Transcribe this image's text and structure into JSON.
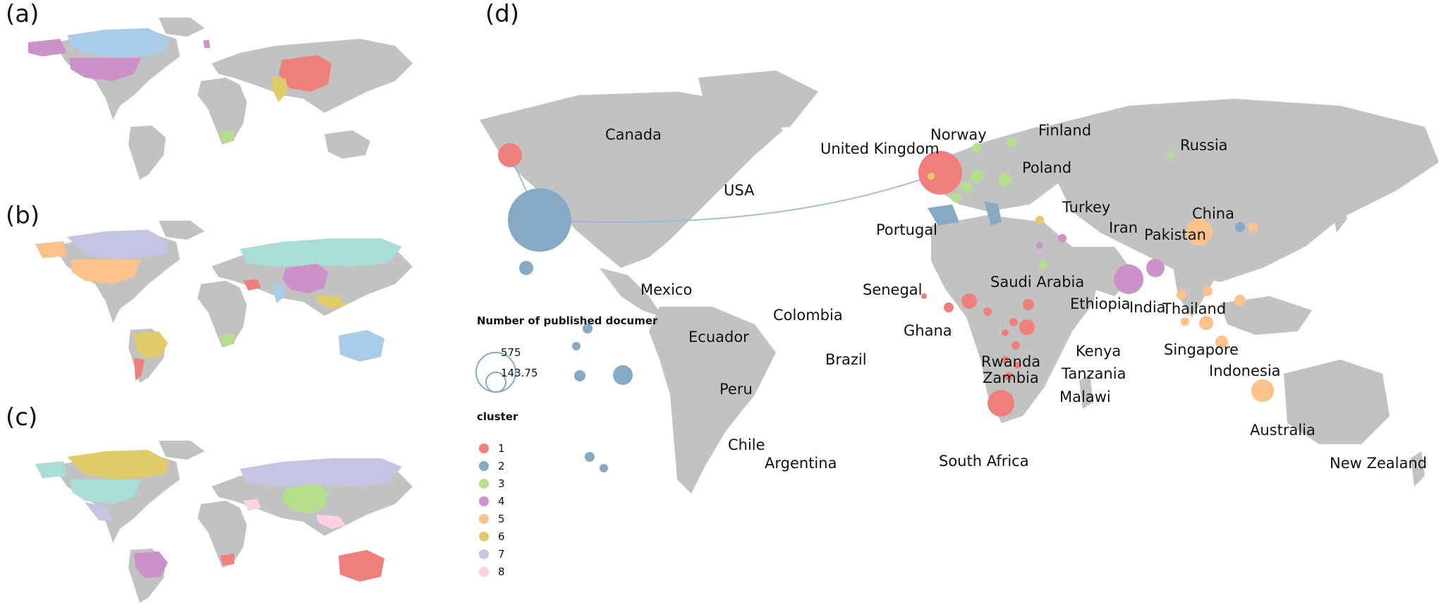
{
  "panel_labels": {
    "a": "(a)",
    "b": "(b)",
    "c": "(c)",
    "d": "(d)"
  },
  "colors": {
    "land": "#c2c2c2",
    "cluster": {
      "1": "#ef7f7a",
      "2": "#86a9c6",
      "3": "#b5df8c",
      "4": "#cc91c9",
      "5": "#fcc28c",
      "6": "#e2cc6a",
      "7": "#c5c4e2",
      "8": "#fcd1e3",
      "9": "#a8ded5",
      "10": "#a9cce9"
    },
    "link": "#98b8d6"
  },
  "legend": {
    "size_title": "Number of published documents",
    "size_values": [
      "575",
      "143.75"
    ],
    "cluster_title": "cluster",
    "clusters": [
      "1",
      "2",
      "3",
      "4",
      "5",
      "6",
      "7",
      "8"
    ]
  },
  "country_labels": [
    "Canada",
    "USA",
    "Mexico",
    "Colombia",
    "Ecuador",
    "Brazil",
    "Peru",
    "Chile",
    "Argentina",
    "United Kingdom",
    "Norway",
    "Finland",
    "Russia",
    "Poland",
    "Turkey",
    "Portugal",
    "Iran",
    "Pakistan",
    "China",
    "Saudi Arabia",
    "Senegal",
    "Ethiopia",
    "India",
    "Thailand",
    "Ghana",
    "Kenya",
    "Rwanda",
    "Zambia",
    "Tanzania",
    "Malawi",
    "Singapore",
    "Indonesia",
    "South Africa",
    "Australia",
    "New Zealand"
  ],
  "chart_data": {
    "type": "bubble-map",
    "size_metric": "Number of published documents",
    "size_legend": [
      575,
      143.75
    ],
    "countries": [
      {
        "name": "USA",
        "cluster": 2,
        "documents": 575
      },
      {
        "name": "United Kingdom",
        "cluster": 1,
        "documents": 270
      },
      {
        "name": "China",
        "cluster": 5,
        "documents": 120
      },
      {
        "name": "India",
        "cluster": 4,
        "documents": 115
      },
      {
        "name": "South Africa",
        "cluster": 1,
        "documents": 110
      },
      {
        "name": "Australia",
        "cluster": 5,
        "documents": 85
      },
      {
        "name": "Canada",
        "cluster": 1,
        "documents": 70
      },
      {
        "name": "Kenya",
        "cluster": 1,
        "documents": 45
      },
      {
        "name": "Brazil",
        "cluster": 2,
        "documents": 60
      },
      {
        "name": "Pakistan",
        "cluster": 4,
        "documents": 45
      },
      {
        "name": "Ghana",
        "cluster": 1,
        "documents": 35
      }
    ]
  }
}
